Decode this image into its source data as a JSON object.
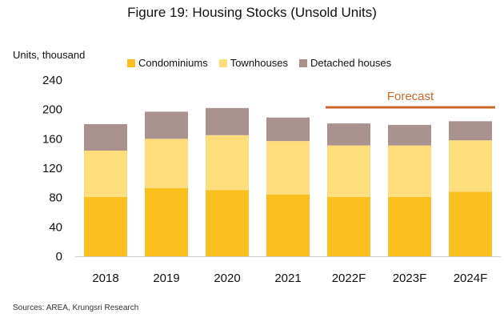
{
  "chart_data": {
    "type": "bar",
    "stacked": true,
    "title": "Figure 19: Housing Stocks (Unsold Units)",
    "ylabel": "Units, thousand",
    "xlabel": "",
    "ylim": [
      0,
      240
    ],
    "yticks": [
      "0",
      "40",
      "80",
      "120",
      "160",
      "200",
      "240"
    ],
    "grid": false,
    "legend_position": "top",
    "categories": [
      "2018",
      "2019",
      "2020",
      "2021",
      "2022F",
      "2023F",
      "2024F"
    ],
    "series": [
      {
        "name": "Condominiums",
        "color": "#FBBF1F",
        "values": [
          81,
          93,
          90,
          84,
          81,
          81,
          88
        ]
      },
      {
        "name": "Townhouses",
        "color": "#FDDD7C",
        "values": [
          63,
          67,
          75,
          73,
          70,
          70,
          70
        ]
      },
      {
        "name": "Detached houses",
        "color": "#A9928E",
        "values": [
          36,
          37,
          37,
          32,
          30,
          28,
          26
        ]
      }
    ],
    "annotation": {
      "text": "Forecast",
      "color": "#C8682A",
      "spans": [
        "2022F",
        "2024F"
      ]
    }
  },
  "source": "Sources: AREA, Krungsri Research"
}
